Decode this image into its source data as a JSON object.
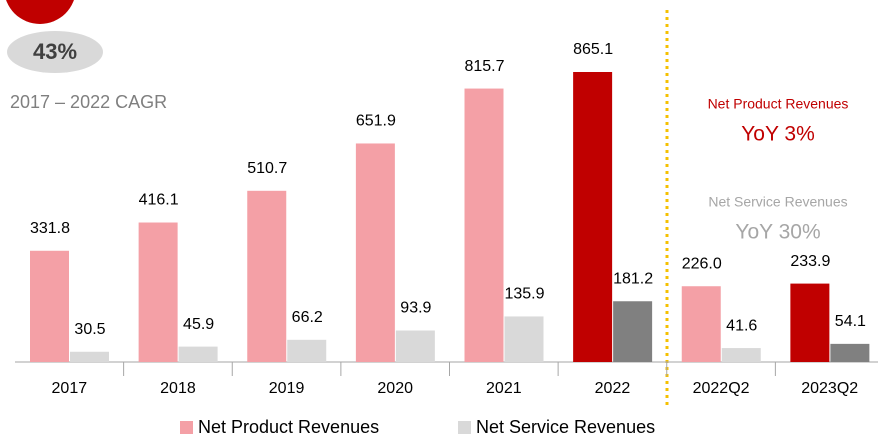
{
  "chart_data": {
    "type": "bar",
    "categories": [
      "2017",
      "2018",
      "2019",
      "2020",
      "2021",
      "2022",
      "2022Q2",
      "2023Q2"
    ],
    "series": [
      {
        "name": "Net Product Revenues",
        "color": "#f4a0a6",
        "colors": [
          "#f4a0a6",
          "#f4a0a6",
          "#f4a0a6",
          "#f4a0a6",
          "#f4a0a6",
          "#c00000",
          "#f4a0a6",
          "#c00000"
        ],
        "values": [
          331.8,
          416.1,
          510.7,
          651.9,
          815.7,
          865.1,
          226.0,
          233.9
        ],
        "value_labels": [
          "331.8",
          "416.1",
          "510.7",
          "651.9",
          "815.7",
          "865.1",
          "226.0",
          "233.9"
        ]
      },
      {
        "name": "Net Service Revenues",
        "color": "#d9d9d9",
        "colors": [
          "#d9d9d9",
          "#d9d9d9",
          "#d9d9d9",
          "#d9d9d9",
          "#d9d9d9",
          "#808080",
          "#d9d9d9",
          "#808080"
        ],
        "values": [
          30.5,
          45.9,
          66.2,
          93.9,
          135.9,
          181.2,
          41.6,
          54.1
        ],
        "value_labels": [
          "30.5",
          "45.9",
          "66.2",
          "93.9",
          "135.9",
          "181.2",
          "41.6",
          "54.1"
        ]
      }
    ],
    "annotations": {
      "cagr_value": "43%",
      "cagr_label": "2017 – 2022 CAGR",
      "product_label": "Net Product Revenues",
      "product_yoy": "YoY 3%",
      "service_label": "Net Service Revenues",
      "service_yoy": "YoY 30%"
    },
    "legend": "bottom"
  }
}
